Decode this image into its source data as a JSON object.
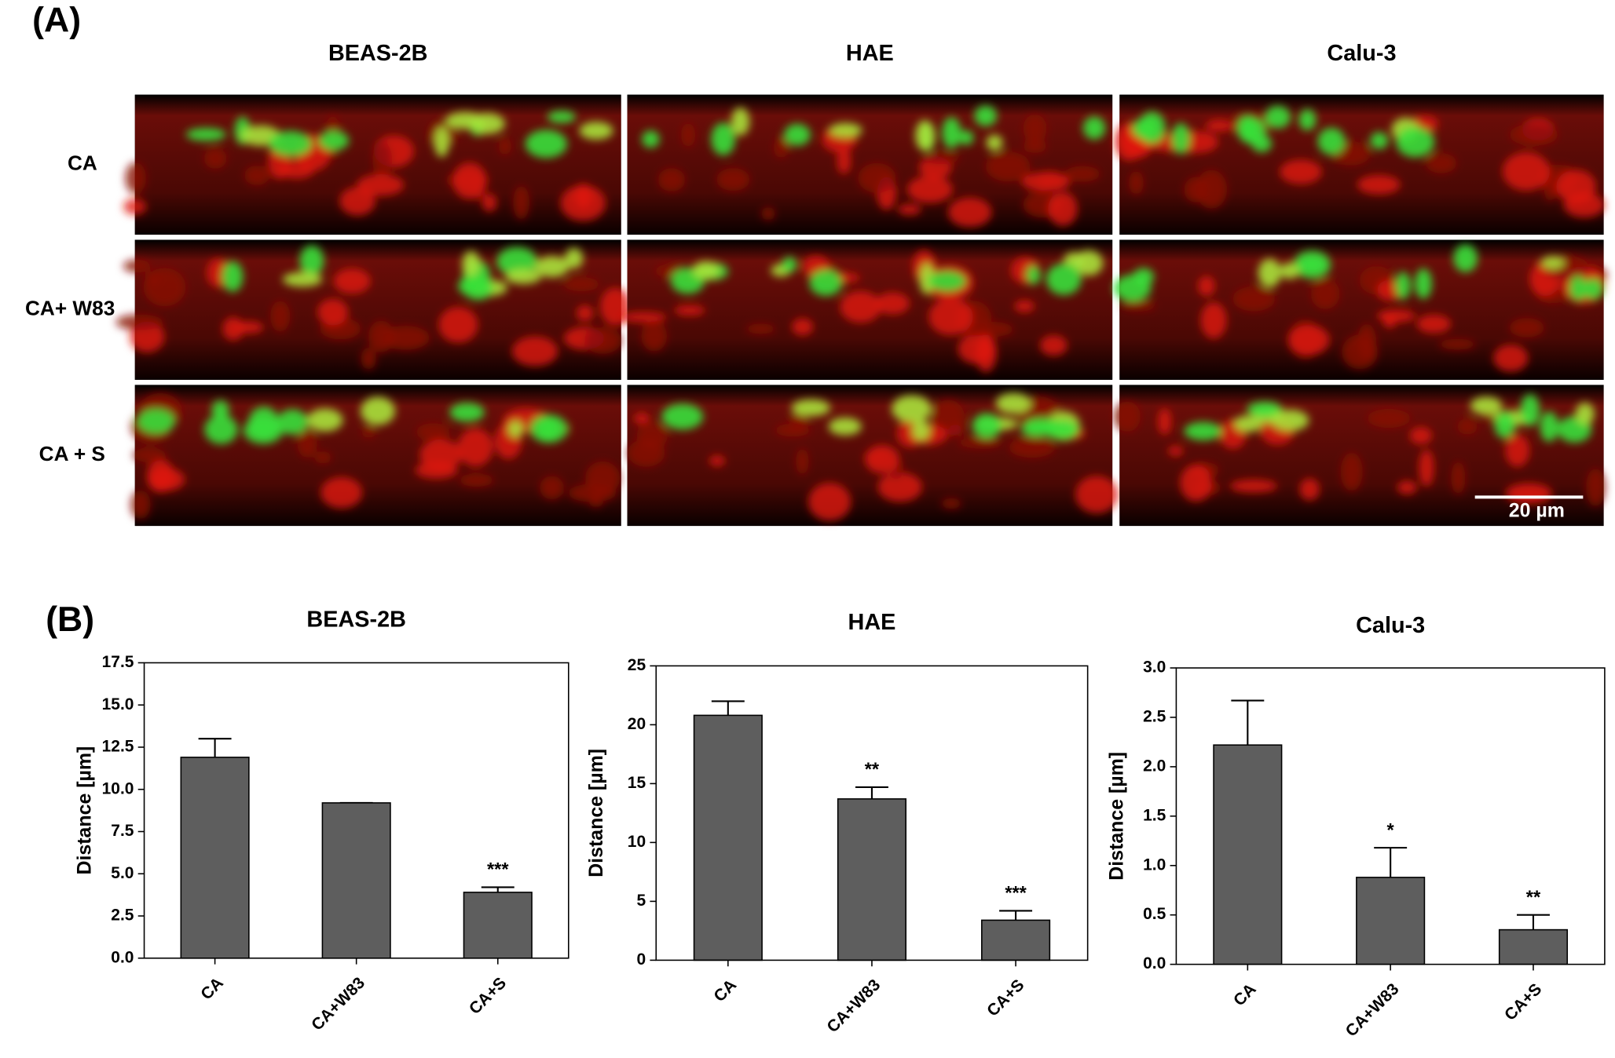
{
  "panel_a": {
    "label": "(A)",
    "columns": [
      "BEAS-2B",
      "HAE",
      "Calu-3"
    ],
    "rows": [
      "CA",
      "CA+ W83",
      "CA + S"
    ],
    "scale_bar": "20 µm"
  },
  "panel_b": {
    "label": "(B)"
  },
  "chart_data": [
    {
      "type": "bar",
      "title": "BEAS-2B",
      "y_label": "Distance [µm]",
      "categories": [
        "CA",
        "CA+W83",
        "CA+S"
      ],
      "values": [
        11.9,
        9.2,
        3.9
      ],
      "errors": [
        1.1,
        0,
        0.3
      ],
      "annotations": [
        null,
        null,
        "***"
      ],
      "color": "#5e5e5e",
      "ylim": [
        0,
        17.5
      ],
      "yticks": [
        {
          "value": 0,
          "label": "0.0"
        },
        2.5,
        {
          "value": 5,
          "label": "5.0"
        },
        7.5,
        {
          "value": 10,
          "label": "10.0"
        },
        12.5,
        {
          "value": 15,
          "label": "15.0"
        },
        17.5
      ]
    },
    {
      "type": "bar",
      "title": "HAE",
      "y_label": "Distance [µm]",
      "categories": [
        "CA",
        "CA+W83",
        "CA+S"
      ],
      "values": [
        20.8,
        13.7,
        3.4
      ],
      "errors": [
        1.2,
        1.0,
        0.8
      ],
      "annotations": [
        null,
        "**",
        "***"
      ],
      "color": "#5e5e5e",
      "ylim": [
        0,
        25
      ],
      "yticks": [
        0,
        5,
        10,
        15,
        20,
        25
      ]
    },
    {
      "type": "bar",
      "title": "Calu-3",
      "y_label": "Distance [µm]",
      "categories": [
        "CA",
        "CA+W83",
        "CA+S"
      ],
      "values": [
        2.22,
        0.88,
        0.35
      ],
      "errors": [
        0.45,
        0.3,
        0.15
      ],
      "annotations": [
        null,
        "*",
        "**"
      ],
      "color": "#5e5e5e",
      "ylim": [
        0,
        3
      ],
      "yticks": [
        {
          "value": 0,
          "label": "0.0"
        },
        0.5,
        {
          "value": 1,
          "label": "1.0"
        },
        1.5,
        {
          "value": 2,
          "label": "2.0"
        },
        2.5,
        {
          "value": 3,
          "label": "3.0"
        }
      ]
    }
  ]
}
